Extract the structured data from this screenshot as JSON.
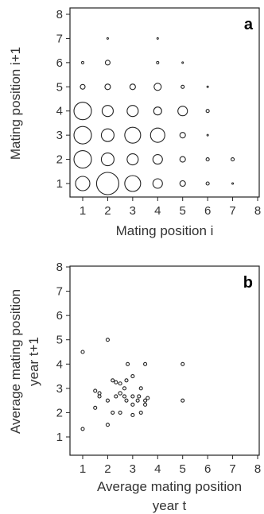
{
  "chart_data": [
    {
      "type": "scatter",
      "panel_label": "a",
      "xlabel": "Mating position i",
      "ylabel": "Mating position i+1",
      "xlim": [
        1,
        8
      ],
      "ylim": [
        1,
        8
      ],
      "xticks": [
        "1",
        "2",
        "3",
        "4",
        "5",
        "6",
        "7",
        "8"
      ],
      "yticks": [
        "1",
        "2",
        "3",
        "4",
        "5",
        "6",
        "7",
        "8"
      ],
      "marker": "open-circle-sized",
      "grid": false,
      "points": [
        {
          "x": 1,
          "y": 1,
          "size": 9
        },
        {
          "x": 2,
          "y": 1,
          "size": 14
        },
        {
          "x": 3,
          "y": 1,
          "size": 10
        },
        {
          "x": 4,
          "y": 1,
          "size": 6
        },
        {
          "x": 5,
          "y": 1,
          "size": 3.5
        },
        {
          "x": 6,
          "y": 1,
          "size": 2
        },
        {
          "x": 7,
          "y": 1,
          "size": 1
        },
        {
          "x": 1,
          "y": 2,
          "size": 11
        },
        {
          "x": 2,
          "y": 2,
          "size": 8
        },
        {
          "x": 3,
          "y": 2,
          "size": 7
        },
        {
          "x": 4,
          "y": 2,
          "size": 6
        },
        {
          "x": 5,
          "y": 2,
          "size": 3.5
        },
        {
          "x": 6,
          "y": 2,
          "size": 2
        },
        {
          "x": 7,
          "y": 2,
          "size": 2
        },
        {
          "x": 1,
          "y": 3,
          "size": 11
        },
        {
          "x": 2,
          "y": 3,
          "size": 8
        },
        {
          "x": 3,
          "y": 3,
          "size": 10
        },
        {
          "x": 4,
          "y": 3,
          "size": 9
        },
        {
          "x": 5,
          "y": 3,
          "size": 3.5
        },
        {
          "x": 6,
          "y": 3,
          "size": 1
        },
        {
          "x": 1,
          "y": 4,
          "size": 11
        },
        {
          "x": 2,
          "y": 4,
          "size": 7
        },
        {
          "x": 3,
          "y": 4,
          "size": 7
        },
        {
          "x": 4,
          "y": 4,
          "size": 5
        },
        {
          "x": 5,
          "y": 4,
          "size": 6
        },
        {
          "x": 6,
          "y": 4,
          "size": 2
        },
        {
          "x": 1,
          "y": 5,
          "size": 3
        },
        {
          "x": 2,
          "y": 5,
          "size": 3.5
        },
        {
          "x": 3,
          "y": 5,
          "size": 3.5
        },
        {
          "x": 4,
          "y": 5,
          "size": 4.5
        },
        {
          "x": 5,
          "y": 5,
          "size": 2
        },
        {
          "x": 6,
          "y": 5,
          "size": 1
        },
        {
          "x": 1,
          "y": 6,
          "size": 1.5
        },
        {
          "x": 2,
          "y": 6,
          "size": 3
        },
        {
          "x": 4,
          "y": 6,
          "size": 1.5
        },
        {
          "x": 5,
          "y": 6,
          "size": 1
        },
        {
          "x": 2,
          "y": 7,
          "size": 1
        },
        {
          "x": 4,
          "y": 7,
          "size": 1
        }
      ]
    },
    {
      "type": "scatter",
      "panel_label": "b",
      "xlabel": "Average mating position year t",
      "xlabel_lines": [
        "Average mating position",
        "year t"
      ],
      "ylabel": "Average mating position year t+1",
      "ylabel_lines": [
        "Average mating position",
        "year t+1"
      ],
      "xlim": [
        1,
        8
      ],
      "ylim": [
        1,
        8
      ],
      "xticks": [
        "1",
        "2",
        "3",
        "4",
        "5",
        "6",
        "7",
        "8"
      ],
      "yticks": [
        "1",
        "2",
        "3",
        "4",
        "5",
        "6",
        "7",
        "8"
      ],
      "marker": "open-circle",
      "grid": false,
      "points": [
        {
          "x": 1.0,
          "y": 1.33
        },
        {
          "x": 1.0,
          "y": 4.5
        },
        {
          "x": 1.5,
          "y": 2.2
        },
        {
          "x": 1.5,
          "y": 2.9
        },
        {
          "x": 1.67,
          "y": 2.67
        },
        {
          "x": 1.67,
          "y": 2.8
        },
        {
          "x": 2.0,
          "y": 1.5
        },
        {
          "x": 2.0,
          "y": 2.5
        },
        {
          "x": 2.0,
          "y": 5.0
        },
        {
          "x": 2.2,
          "y": 2.0
        },
        {
          "x": 2.2,
          "y": 3.33
        },
        {
          "x": 2.33,
          "y": 2.67
        },
        {
          "x": 2.33,
          "y": 3.25
        },
        {
          "x": 2.5,
          "y": 2.0
        },
        {
          "x": 2.5,
          "y": 2.8,
          "size": 2.2
        },
        {
          "x": 2.5,
          "y": 3.2
        },
        {
          "x": 2.67,
          "y": 2.67
        },
        {
          "x": 2.67,
          "y": 3.0
        },
        {
          "x": 2.75,
          "y": 2.5
        },
        {
          "x": 2.75,
          "y": 3.33
        },
        {
          "x": 2.8,
          "y": 4.0
        },
        {
          "x": 3.0,
          "y": 1.9
        },
        {
          "x": 3.0,
          "y": 2.33
        },
        {
          "x": 3.0,
          "y": 2.67
        },
        {
          "x": 3.0,
          "y": 3.5
        },
        {
          "x": 3.2,
          "y": 2.5
        },
        {
          "x": 3.25,
          "y": 2.67
        },
        {
          "x": 3.33,
          "y": 2.0
        },
        {
          "x": 3.33,
          "y": 3.0
        },
        {
          "x": 3.5,
          "y": 2.33
        },
        {
          "x": 3.5,
          "y": 2.5
        },
        {
          "x": 3.5,
          "y": 4.0
        },
        {
          "x": 3.6,
          "y": 2.6
        },
        {
          "x": 5.0,
          "y": 2.5
        },
        {
          "x": 5.0,
          "y": 4.0
        }
      ]
    }
  ]
}
